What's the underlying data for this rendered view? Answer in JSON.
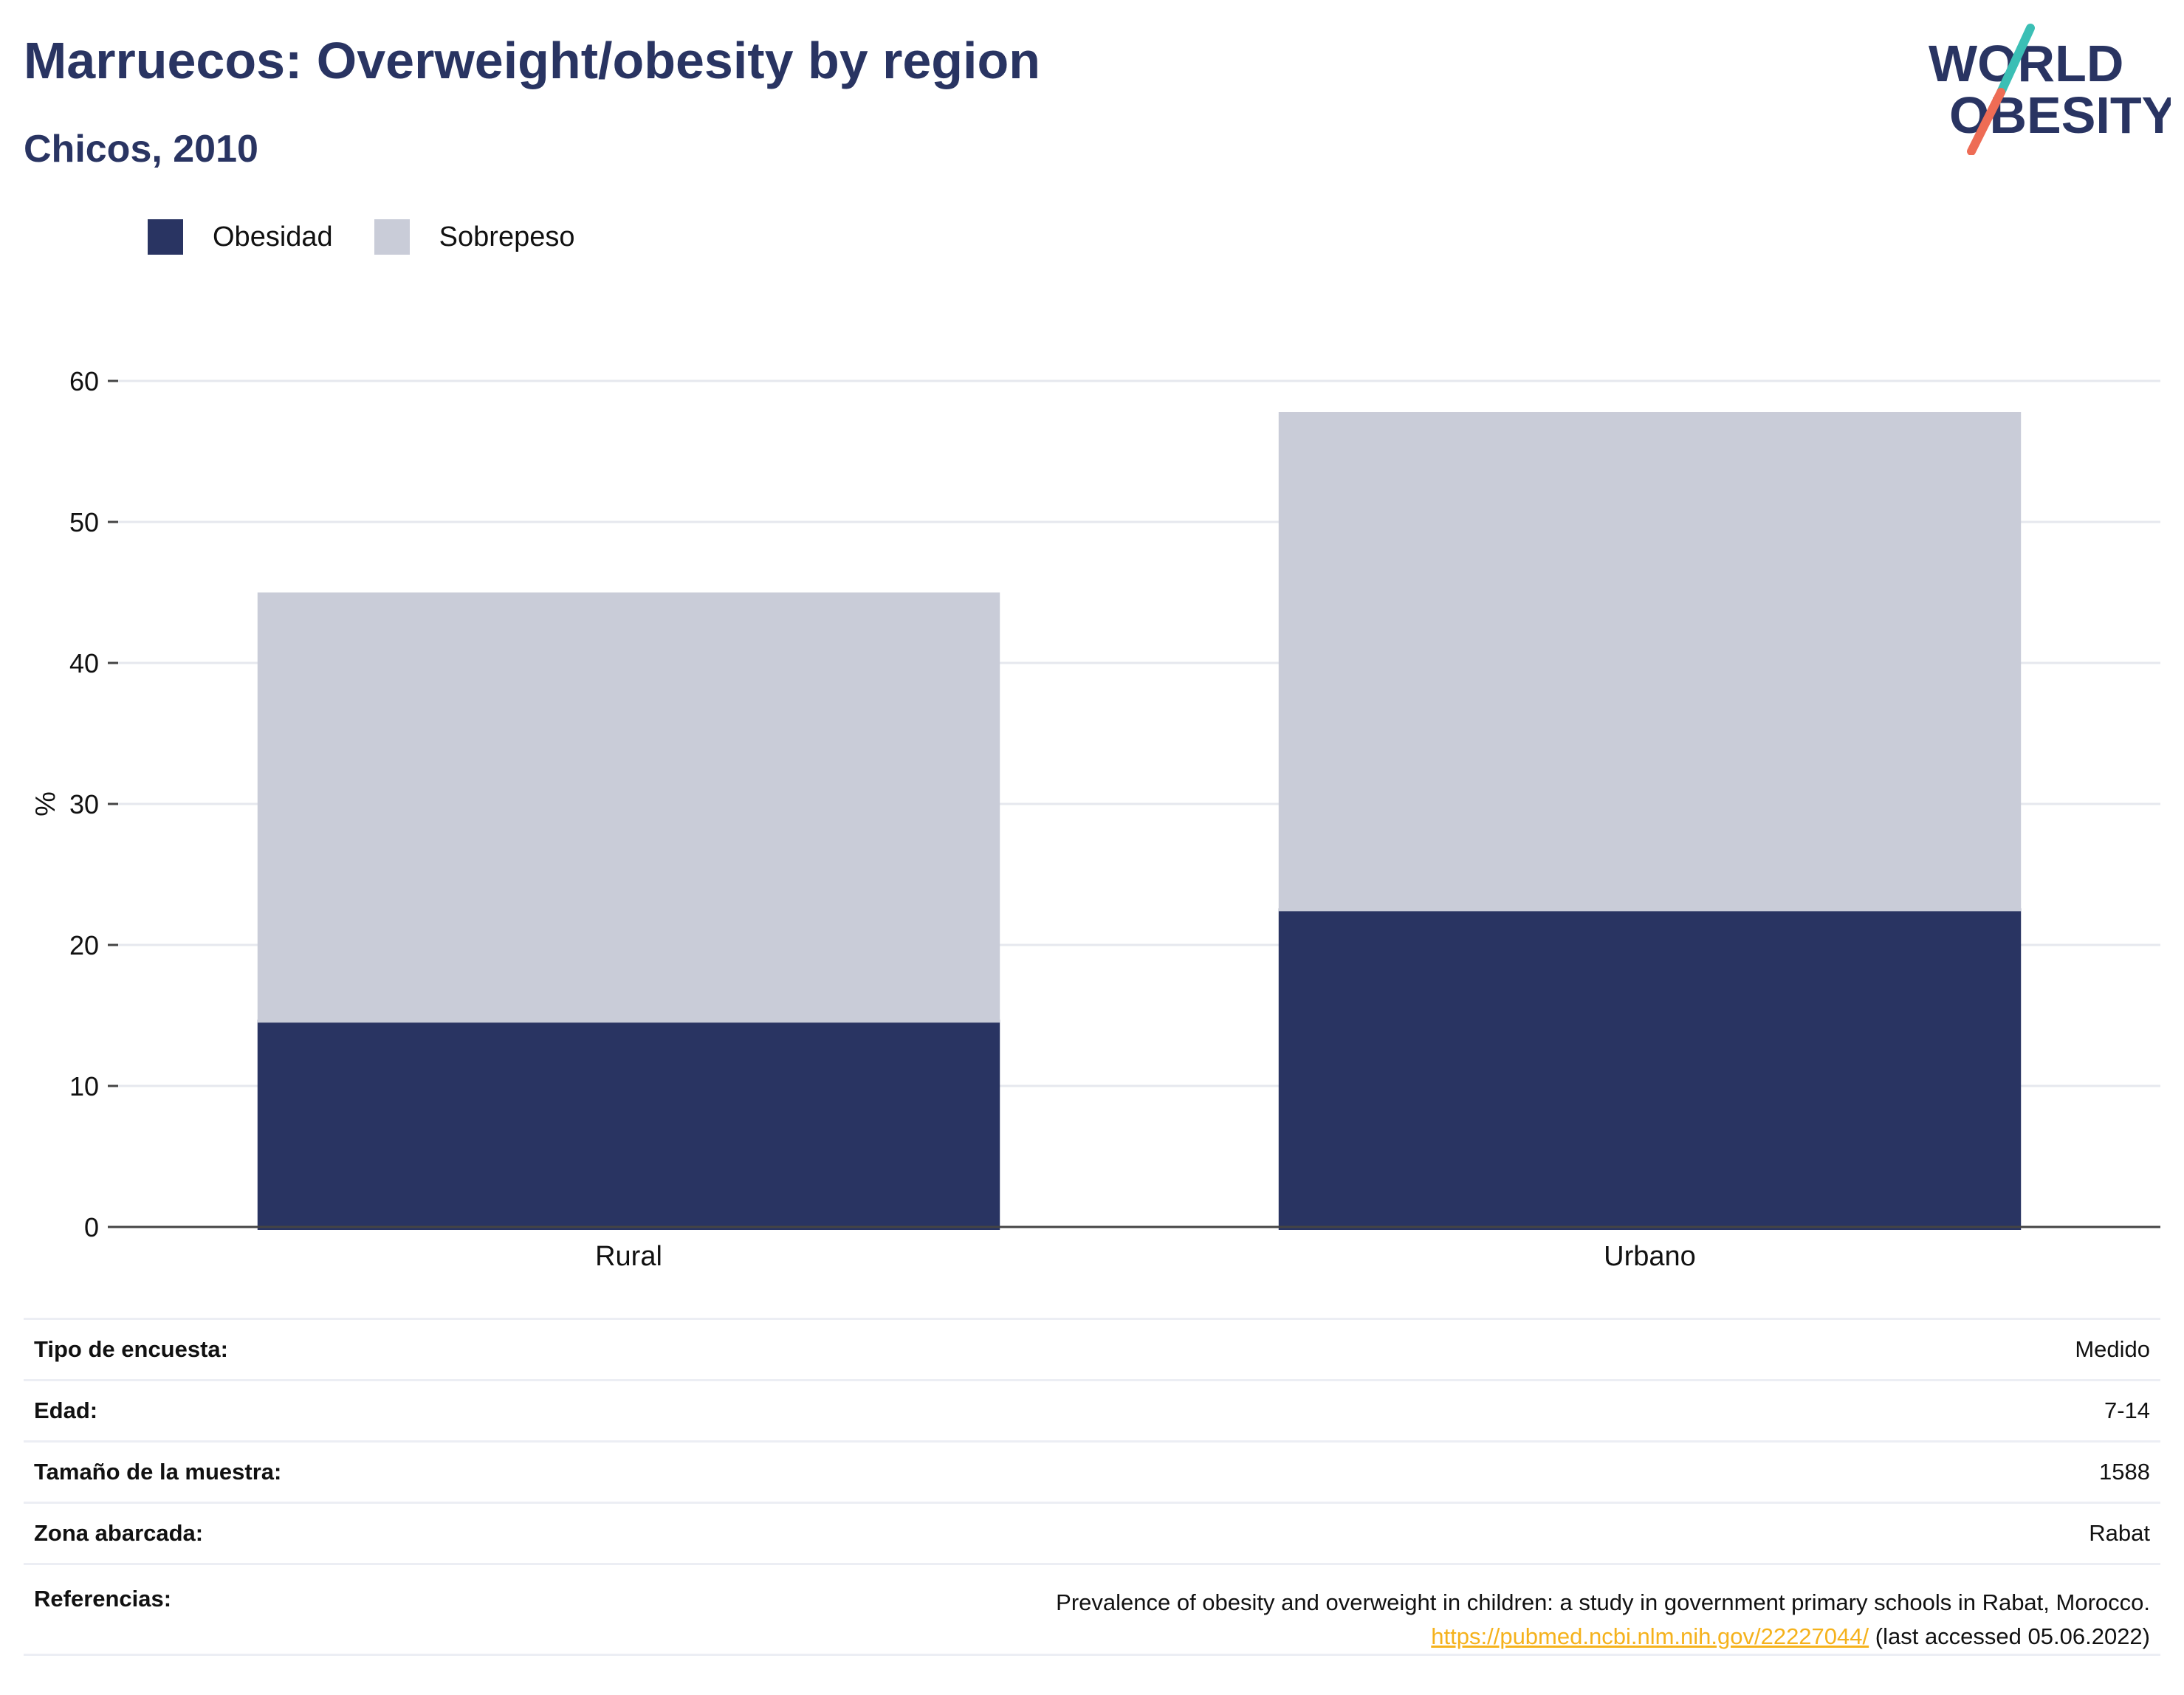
{
  "header": {
    "title": "Marruecos: Overweight/obesity by region",
    "subtitle": "Chicos, 2010",
    "logo_line1": "WORLD",
    "logo_line2": "OBESITY"
  },
  "legend": [
    {
      "label": "Obesidad",
      "color": "#293462"
    },
    {
      "label": "Sobrepeso",
      "color": "#c9ccd8"
    }
  ],
  "chart_data": {
    "type": "bar",
    "stacked": true,
    "categories": [
      "Rural",
      "Urbano"
    ],
    "series": [
      {
        "name": "Obesidad",
        "values": [
          14.7,
          22.6
        ],
        "color": "#293462"
      },
      {
        "name": "Sobrepeso",
        "values": [
          30.3,
          35.2
        ],
        "color": "#c9ccd8"
      }
    ],
    "ylabel": "%",
    "ylim": [
      0,
      60
    ],
    "yticks": [
      0,
      10,
      20,
      30,
      40,
      50,
      60
    ],
    "grid": true,
    "legend_position": "top-left"
  },
  "info": {
    "survey_type_label": "Tipo de encuesta:",
    "survey_type_value": "Medido",
    "age_label": "Edad:",
    "age_value": "7-14",
    "sample_label": "Tamaño de la muestra:",
    "sample_value": "1588",
    "area_label": "Zona abarcada:",
    "area_value": "Rabat",
    "refs_label": "Referencias:",
    "refs_text": "Prevalence of obesity and overweight in children: a study in government primary schools in Rabat, Morocco.",
    "refs_link": "https://pubmed.ncbi.nlm.nih.gov/22227044/",
    "refs_accessed": "(last accessed 05.06.2022)"
  }
}
